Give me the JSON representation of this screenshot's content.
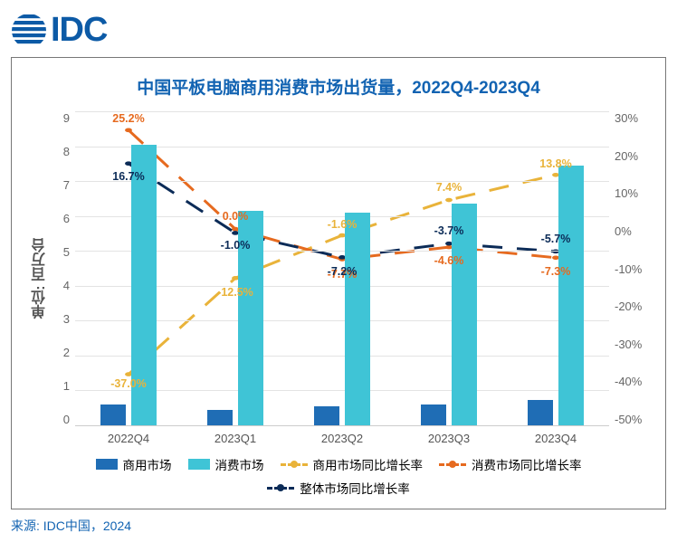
{
  "logo": {
    "text": "IDC",
    "color": "#0c5aa6"
  },
  "source": "来源: IDC中国，2024",
  "chart": {
    "type": "bar+line",
    "title": "中国平板电脑商用消费市场出货量，2022Q4-2023Q4",
    "title_color": "#1263b2",
    "title_fontsize": 19,
    "background_color": "#ffffff",
    "grid_color": "#e3e3e3",
    "categories": [
      "2022Q4",
      "2023Q1",
      "2023Q2",
      "2023Q3",
      "2023Q4"
    ],
    "y_left": {
      "label": "单位: 百万台",
      "min": 0,
      "max": 9,
      "step": 1,
      "ticks": [
        9,
        8,
        7,
        6,
        5,
        4,
        3,
        2,
        1,
        0
      ],
      "color": "#666"
    },
    "y_right": {
      "min": -50,
      "max": 30,
      "step": 10,
      "ticks": [
        "30%",
        "20%",
        "10%",
        "0%",
        "-10%",
        "-20%",
        "-30%",
        "-40%",
        "-50%"
      ],
      "color": "#666"
    },
    "bars": [
      {
        "key": "commercial",
        "name": "商用市场",
        "color": "#1f6db5",
        "values": [
          0.6,
          0.45,
          0.55,
          0.6,
          0.72
        ],
        "width": 0.24
      },
      {
        "key": "consumer",
        "name": "消费市场",
        "color": "#3fc4d6",
        "values": [
          8.05,
          6.15,
          6.1,
          6.35,
          7.45
        ],
        "width": 0.24
      }
    ],
    "lines": [
      {
        "key": "commercial_yoy",
        "name": "商用市场同比增长率",
        "color": "#e9b33a",
        "values": [
          -37.0,
          -12.5,
          -1.6,
          7.4,
          13.8
        ],
        "labels": [
          "-37.0%",
          "-12.5%",
          "-1.6%",
          "7.4%",
          "13.8%"
        ],
        "label_dy": [
          10,
          16,
          -12,
          -14,
          -12
        ],
        "dash": "8,6",
        "lw": 3
      },
      {
        "key": "consumer_yoy",
        "name": "消费市场同比增长率",
        "color": "#e66a1f",
        "values": [
          25.2,
          0.0,
          -7.7,
          -4.6,
          -7.3
        ],
        "labels": [
          "25.2%",
          "0.0%",
          "-7.7%",
          "-4.6%",
          "-7.3%"
        ],
        "label_dy": [
          -13,
          -14,
          16,
          15,
          15
        ],
        "dash": "8,6",
        "lw": 3
      },
      {
        "key": "total_yoy",
        "name": "整体市场同比增长率",
        "color": "#0b2b57",
        "values": [
          16.7,
          -1.0,
          -7.2,
          -3.7,
          -5.7
        ],
        "labels": [
          "16.7%",
          "-1.0%",
          "-7.2%",
          "-3.7%",
          "-5.7%"
        ],
        "label_dy": [
          14,
          14,
          16,
          -14,
          -14
        ],
        "dash": "8,6",
        "lw": 3
      }
    ],
    "legend": [
      {
        "type": "bar",
        "color": "#1f6db5",
        "label": "商用市场"
      },
      {
        "type": "bar",
        "color": "#3fc4d6",
        "label": "消费市场"
      },
      {
        "type": "line",
        "color": "#e9b33a",
        "label": "商用市场同比增长率"
      },
      {
        "type": "line",
        "color": "#e66a1f",
        "label": "消费市场同比增长率"
      },
      {
        "type": "line",
        "color": "#0b2b57",
        "label": "整体市场同比增长率"
      }
    ]
  }
}
